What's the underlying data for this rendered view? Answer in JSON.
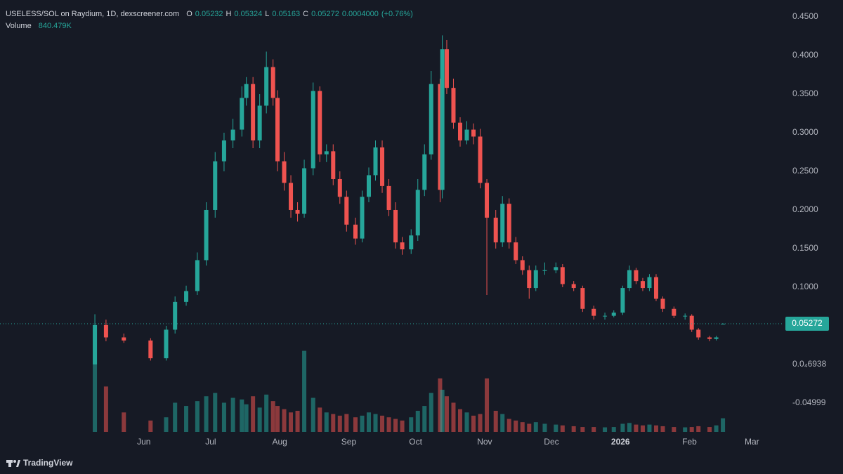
{
  "header": {
    "title": "USELESS/SOL on Raydium, 1D, dexscreener.com",
    "o_label": "O",
    "open": 0.05232,
    "h_label": "H",
    "high": 0.05324,
    "l_label": "L",
    "low": 0.05163,
    "c_label": "C",
    "close": 0.05272,
    "change": {
      "value": 0.0004,
      "label": "0.0004000"
    },
    "change_pct": {
      "value": 0.76,
      "label": "(+0.76%)"
    },
    "volume_label": "Volume",
    "volume": {
      "value": 840479,
      "label": "840.479K"
    }
  },
  "chart_data": {
    "type": "candlestick",
    "up_color": "#26a69a",
    "down_color": "#ef5350",
    "grid": false,
    "x": [
      0,
      5,
      13,
      25,
      32,
      36,
      41,
      46,
      50,
      54,
      58,
      62,
      66,
      68,
      71,
      74,
      77,
      80,
      82,
      85,
      88,
      91,
      94,
      98,
      101,
      104,
      107,
      110,
      113,
      117,
      120,
      123,
      126,
      129,
      132,
      135,
      138,
      142,
      145,
      148,
      151,
      155,
      156,
      158,
      161,
      164,
      167,
      170,
      173,
      176,
      180,
      183,
      186,
      189,
      192,
      195,
      198,
      202,
      207,
      210,
      215,
      219,
      224,
      229,
      233,
      237,
      240,
      243,
      246,
      249,
      252,
      255,
      260,
      265,
      268,
      271,
      276,
      279,
      282
    ],
    "open": [
      0.0,
      0.051,
      0.035,
      0.031,
      0.008,
      0.045,
      0.081,
      0.095,
      0.135,
      0.2,
      0.263,
      0.29,
      0.304,
      0.345,
      0.363,
      0.29,
      0.335,
      0.385,
      0.345,
      0.263,
      0.235,
      0.2,
      0.195,
      0.254,
      0.354,
      0.272,
      0.276,
      0.24,
      0.217,
      0.181,
      0.163,
      0.217,
      0.245,
      0.281,
      0.231,
      0.2,
      0.158,
      0.149,
      0.167,
      0.226,
      0.272,
      0.363,
      0.226,
      0.408,
      0.358,
      0.313,
      0.29,
      0.304,
      0.295,
      0.235,
      0.19,
      0.158,
      0.208,
      0.158,
      0.135,
      0.122,
      0.099,
      0.122,
      0.122,
      0.126,
      0.104,
      0.099,
      0.072,
      0.063,
      0.063,
      0.067,
      0.099,
      0.122,
      0.108,
      0.099,
      0.113,
      0.085,
      0.072,
      0.063,
      0.063,
      0.045,
      0.035,
      0.033,
      0.05232
    ],
    "high": [
      0.065,
      0.058,
      0.04,
      0.034,
      0.05,
      0.088,
      0.102,
      0.145,
      0.21,
      0.275,
      0.3,
      0.318,
      0.36,
      0.372,
      0.372,
      0.35,
      0.405,
      0.395,
      0.355,
      0.275,
      0.245,
      0.21,
      0.265,
      0.365,
      0.36,
      0.285,
      0.285,
      0.25,
      0.225,
      0.19,
      0.225,
      0.255,
      0.29,
      0.29,
      0.24,
      0.21,
      0.165,
      0.175,
      0.24,
      0.285,
      0.38,
      0.37,
      0.426,
      0.42,
      0.37,
      0.32,
      0.315,
      0.312,
      0.305,
      0.24,
      0.2,
      0.218,
      0.215,
      0.165,
      0.14,
      0.128,
      0.128,
      0.132,
      0.132,
      0.13,
      0.108,
      0.102,
      0.076,
      0.067,
      0.07,
      0.102,
      0.128,
      0.125,
      0.112,
      0.117,
      0.117,
      0.088,
      0.075,
      0.066,
      0.065,
      0.047,
      0.037,
      0.037,
      0.05324
    ],
    "low": [
      0.0,
      0.03,
      0.028,
      0.005,
      0.005,
      0.04,
      0.076,
      0.09,
      0.128,
      0.19,
      0.25,
      0.28,
      0.295,
      0.335,
      0.28,
      0.28,
      0.325,
      0.335,
      0.25,
      0.225,
      0.19,
      0.185,
      0.19,
      0.245,
      0.262,
      0.262,
      0.232,
      0.208,
      0.172,
      0.155,
      0.158,
      0.21,
      0.238,
      0.222,
      0.192,
      0.15,
      0.142,
      0.143,
      0.16,
      0.218,
      0.265,
      0.21,
      0.215,
      0.35,
      0.305,
      0.282,
      0.285,
      0.285,
      0.228,
      0.09,
      0.15,
      0.152,
      0.15,
      0.13,
      0.116,
      0.085,
      0.095,
      0.116,
      0.118,
      0.1,
      0.095,
      0.068,
      0.058,
      0.058,
      0.061,
      0.064,
      0.095,
      0.104,
      0.095,
      0.095,
      0.082,
      0.068,
      0.06,
      0.058,
      0.042,
      0.032,
      0.03,
      0.031,
      0.05163
    ],
    "close": [
      0.051,
      0.035,
      0.031,
      0.008,
      0.045,
      0.081,
      0.095,
      0.135,
      0.2,
      0.263,
      0.29,
      0.304,
      0.345,
      0.363,
      0.29,
      0.335,
      0.385,
      0.345,
      0.263,
      0.235,
      0.2,
      0.195,
      0.254,
      0.354,
      0.272,
      0.276,
      0.24,
      0.217,
      0.181,
      0.163,
      0.217,
      0.245,
      0.281,
      0.231,
      0.2,
      0.158,
      0.149,
      0.167,
      0.226,
      0.272,
      0.363,
      0.226,
      0.408,
      0.358,
      0.313,
      0.29,
      0.304,
      0.295,
      0.235,
      0.19,
      0.158,
      0.208,
      0.158,
      0.135,
      0.122,
      0.099,
      0.122,
      0.122,
      0.126,
      0.104,
      0.099,
      0.072,
      0.063,
      0.063,
      0.067,
      0.099,
      0.122,
      0.108,
      0.099,
      0.113,
      0.085,
      0.072,
      0.063,
      0.063,
      0.045,
      0.035,
      0.033,
      0.035,
      0.05272
    ],
    "volume": [
      6300000,
      2800000,
      1200000,
      700000,
      900000,
      1800000,
      1600000,
      1900000,
      2200000,
      2400000,
      1800000,
      2100000,
      2000000,
      1700000,
      2200000,
      1500000,
      2300000,
      1900000,
      1600000,
      1400000,
      1200000,
      1300000,
      5000000,
      2100000,
      1500000,
      1200000,
      1100000,
      1000000,
      1100000,
      900000,
      1000000,
      1200000,
      1100000,
      1000000,
      900000,
      800000,
      700000,
      900000,
      1300000,
      1600000,
      2400000,
      3300000,
      2600000,
      2200000,
      1800000,
      1400000,
      1200000,
      1000000,
      1100000,
      3300000,
      1300000,
      1100000,
      800000,
      700000,
      600000,
      500000,
      600000,
      500000,
      450000,
      400000,
      350000,
      300000,
      300000,
      280000,
      300000,
      500000,
      550000,
      450000,
      400000,
      450000,
      400000,
      350000,
      300000,
      280000,
      300000,
      350000,
      300000,
      400000,
      840479
    ],
    "xlim": [
      -42.6,
      309.1
    ],
    "xticks": [
      {
        "value": 22,
        "label": "Jun"
      },
      {
        "value": 52,
        "label": "Jul"
      },
      {
        "value": 83,
        "label": "Aug"
      },
      {
        "value": 114,
        "label": "Sep"
      },
      {
        "value": 144,
        "label": "Oct"
      },
      {
        "value": 175,
        "label": "Nov"
      },
      {
        "value": 205,
        "label": "Dec"
      },
      {
        "value": 236,
        "label": "2026"
      },
      {
        "value": 267,
        "label": "Feb"
      },
      {
        "value": 295,
        "label": "Mar"
      }
    ],
    "ylim": [
      -0.0873,
      0.4718
    ],
    "yticks": [
      {
        "value": 0.45,
        "label": "0.4500"
      },
      {
        "value": 0.4,
        "label": "0.4000"
      },
      {
        "value": 0.35,
        "label": "0.3500"
      },
      {
        "value": 0.3,
        "label": "0.3000"
      },
      {
        "value": 0.25,
        "label": "0.2500"
      },
      {
        "value": 0.2,
        "label": "0.2000"
      },
      {
        "value": 0.15,
        "label": "0.1500"
      },
      {
        "value": 0.1,
        "label": "0.1000"
      },
      {
        "value": 6.938e-05,
        "label": "0.0₄6938"
      },
      -0.04999
    ],
    "vlim": [
      0,
      6500000
    ]
  },
  "footer": {
    "brand": "TradingView"
  }
}
